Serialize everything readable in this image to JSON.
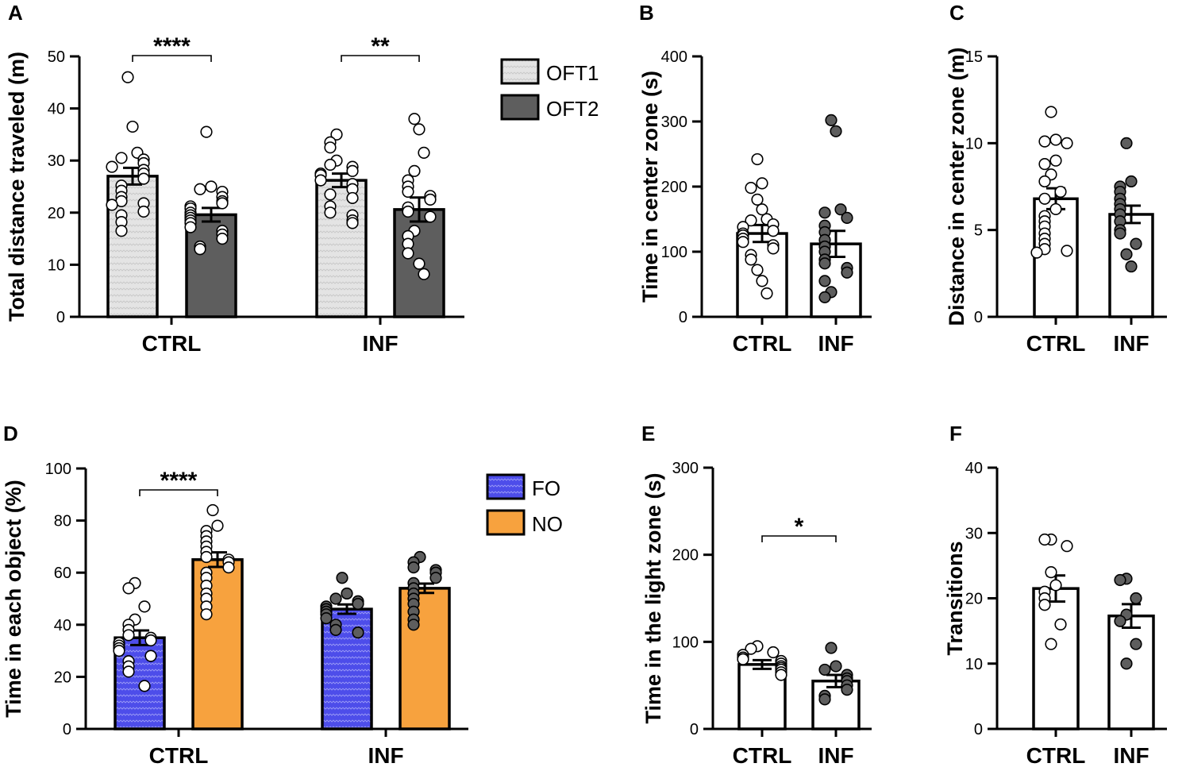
{
  "colors": {
    "oft1": "#e4e4e4",
    "oft2": "#5e5e5e",
    "fo": "#4d4dea",
    "no": "#f7a23e",
    "white_bar": "#ffffff",
    "open_point": "#ffffff",
    "filled_point": "#5e5e5e"
  },
  "chart_data": [
    {
      "panel": "A",
      "type": "bar",
      "ylabel": "Total distance traveled (m)",
      "ylim": [
        0,
        50
      ],
      "yticks": [
        0,
        10,
        20,
        30,
        40,
        50
      ],
      "categories": [
        "CTRL",
        "INF"
      ],
      "legend": {
        "position": "top-right",
        "entries": [
          "OFT1",
          "OFT2"
        ]
      },
      "series": [
        {
          "name": "OFT1",
          "fill": "oft1",
          "point_style": "open",
          "values": [
            27,
            26.2
          ],
          "sem": [
            1.6,
            1.3
          ],
          "points": [
            [
              46,
              36.5,
              31.5,
              30.5,
              30.2,
              29.5,
              28.8,
              28.2,
              27.5,
              26.5,
              25.2,
              24.2,
              23,
              22.2,
              21.8,
              21.5,
              20.2,
              19.5,
              18.2,
              16.5
            ],
            [
              35,
              33.5,
              32.5,
              30,
              29.2,
              28.8,
              28,
              27.5,
              27.2,
              26.2,
              25.5,
              24.5,
              23.5,
              22.8,
              21.2,
              20,
              19.5,
              18.5,
              18
            ]
          ]
        },
        {
          "name": "OFT2",
          "fill": "oft2",
          "point_style": "open",
          "values": [
            19.6,
            20.6
          ],
          "sem": [
            1.3,
            2.3
          ],
          "points": [
            [
              35.5,
              25,
              24.5,
              24,
              23,
              22.2,
              21.8,
              21.2,
              20.8,
              20,
              19.5,
              19,
              18.5,
              18,
              17.2,
              16.5,
              15.8,
              15,
              13.5,
              13
            ],
            [
              38,
              36,
              31.5,
              28,
              26.2,
              25,
              24,
              23.2,
              22.5,
              21,
              20.2,
              19.2,
              16.5,
              15.5,
              14,
              12.2,
              10.2,
              8.2
            ]
          ]
        }
      ],
      "significance": [
        {
          "category": "CTRL",
          "label": "****"
        },
        {
          "category": "INF",
          "label": "**"
        }
      ]
    },
    {
      "panel": "B",
      "type": "bar",
      "ylabel": "Time in center zone (s)",
      "ylim": [
        0,
        400
      ],
      "yticks": [
        0,
        100,
        200,
        300,
        400
      ],
      "categories": [
        "CTRL",
        "INF"
      ],
      "values": [
        128,
        112
      ],
      "sem": [
        13,
        20
      ],
      "point_styles": [
        "open",
        "filled"
      ],
      "points": [
        [
          242,
          205,
          198,
          180,
          165,
          150,
          148,
          142,
          138,
          132,
          128,
          125,
          120,
          115,
          110,
          105,
          95,
          88,
          72,
          55,
          36
        ],
        [
          302,
          285,
          165,
          160,
          152,
          140,
          130,
          118,
          108,
          100,
          88,
          82,
          75,
          68,
          55,
          38,
          30
        ]
      ]
    },
    {
      "panel": "C",
      "type": "bar",
      "ylabel": "Distance in center zone (m)",
      "ylim": [
        0,
        15
      ],
      "yticks": [
        0,
        5,
        10,
        15
      ],
      "categories": [
        "CTRL",
        "INF"
      ],
      "values": [
        6.8,
        5.9
      ],
      "sem": [
        0.6,
        0.5
      ],
      "point_styles": [
        "open",
        "filled"
      ],
      "points": [
        [
          11.8,
          10.2,
          10.1,
          10,
          9,
          8.8,
          8.2,
          7.8,
          7.2,
          6.8,
          6.2,
          5.8,
          5.5,
          5.2,
          4.8,
          4.5,
          4.2,
          3.9,
          3.8,
          3.7
        ],
        [
          10,
          7.8,
          7.5,
          7.2,
          6.8,
          6.5,
          6.2,
          5.9,
          5.5,
          5,
          4.8,
          4.2,
          3.6,
          2.9
        ]
      ]
    },
    {
      "panel": "D",
      "type": "bar",
      "ylabel": "Time in each object (%)",
      "ylim": [
        0,
        100
      ],
      "yticks": [
        0,
        20,
        40,
        60,
        80,
        100
      ],
      "categories": [
        "CTRL",
        "INF"
      ],
      "legend": {
        "position": "top-right",
        "entries": [
          "FO",
          "NO"
        ]
      },
      "series": [
        {
          "name": "FO",
          "fill": "fo",
          "point_style": "open",
          "values": [
            35,
            46
          ],
          "sem": [
            2.8,
            1.8
          ],
          "points": [
            [
              56,
              54,
              47,
              42,
              40,
              38,
              36,
              35,
              34,
              33,
              32,
              31,
              30,
              28,
              26,
              24,
              22,
              16.5
            ],
            [
              58,
              52,
              50,
              49,
              48,
              47,
              46,
              45,
              44,
              42.5,
              40,
              38,
              37
            ]
          ]
        },
        {
          "name": "NO",
          "fill": "no",
          "point_style": "open",
          "values": [
            65,
            54
          ],
          "sem": [
            2.8,
            1.8
          ],
          "points": [
            [
              84,
              78,
              76,
              74,
              72,
              70,
              68,
              66,
              65,
              64,
              62,
              60,
              58,
              55,
              52,
              50,
              47,
              44
            ],
            [
              66,
              64,
              62,
              61,
              60,
              58,
              56,
              54,
              52,
              50,
              48,
              45,
              42,
              40
            ]
          ]
        }
      ],
      "inf_point_style": "filled",
      "significance": [
        {
          "category": "CTRL",
          "label": "****"
        }
      ]
    },
    {
      "panel": "E",
      "type": "bar",
      "ylabel": "Time in the light zone (s)",
      "ylim": [
        0,
        300
      ],
      "yticks": [
        0,
        100,
        200,
        300
      ],
      "categories": [
        "CTRL",
        "INF"
      ],
      "values": [
        74,
        55
      ],
      "sem": [
        5,
        7
      ],
      "point_styles": [
        "open",
        "filled"
      ],
      "points": [
        [
          95,
          92,
          88,
          85,
          82,
          80,
          78,
          75,
          72,
          70,
          68,
          65,
          62
        ],
        [
          93,
          72,
          68,
          62,
          58,
          55,
          50,
          45,
          38,
          34
        ]
      ],
      "significance": [
        {
          "between": [
            "CTRL",
            "INF"
          ],
          "label": "*"
        }
      ]
    },
    {
      "panel": "F",
      "type": "bar",
      "ylabel": "Transitions",
      "ylim": [
        0,
        40
      ],
      "yticks": [
        0,
        10,
        20,
        30,
        40
      ],
      "categories": [
        "CTRL",
        "INF"
      ],
      "values": [
        21.5,
        17.3
      ],
      "sem": [
        2,
        1.8
      ],
      "point_styles": [
        "open",
        "filled"
      ],
      "points": [
        [
          29,
          29,
          28,
          24,
          22,
          21,
          20,
          19,
          16,
          13
        ],
        [
          23,
          22.8,
          20,
          17.5,
          16.5,
          13,
          10
        ]
      ]
    }
  ]
}
